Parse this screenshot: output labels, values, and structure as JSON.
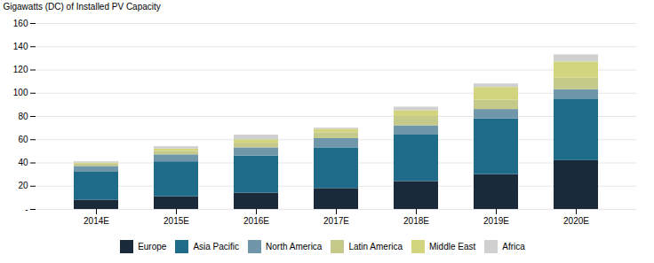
{
  "chart_data": {
    "type": "bar",
    "stacked": true,
    "categories": [
      "2014E",
      "2015E",
      "2016E",
      "2017E",
      "2018E",
      "2019E",
      "2020E"
    ],
    "series": [
      {
        "name": "Europe",
        "color": "#1b2a3b",
        "values": [
          8,
          11,
          14,
          18,
          24,
          30,
          42
        ]
      },
      {
        "name": "Asia Pacific",
        "color": "#1e6b8a",
        "values": [
          24,
          30,
          32,
          35,
          40,
          48,
          53
        ]
      },
      {
        "name": "North America",
        "color": "#7096aa",
        "values": [
          5,
          6,
          7,
          8,
          8,
          8,
          8
        ]
      },
      {
        "name": "Latin America",
        "color": "#c5c98a",
        "values": [
          2,
          3,
          4,
          5,
          8,
          8,
          10
        ]
      },
      {
        "name": "Middle East",
        "color": "#d2d47e",
        "values": [
          1,
          2,
          3,
          3,
          5,
          11,
          14
        ]
      },
      {
        "name": "Africa",
        "color": "#d0d0d0",
        "values": [
          1,
          2,
          4,
          1,
          3,
          3,
          6
        ]
      }
    ],
    "ylabel": "Gigawatts (DC) of Installed PV Capacity",
    "ylim": [
      0,
      160
    ],
    "yticks": [
      {
        "value": 0,
        "label": "-"
      },
      20,
      40,
      60,
      80,
      100,
      120,
      140,
      160
    ],
    "grid": true,
    "legend": "bottom"
  }
}
